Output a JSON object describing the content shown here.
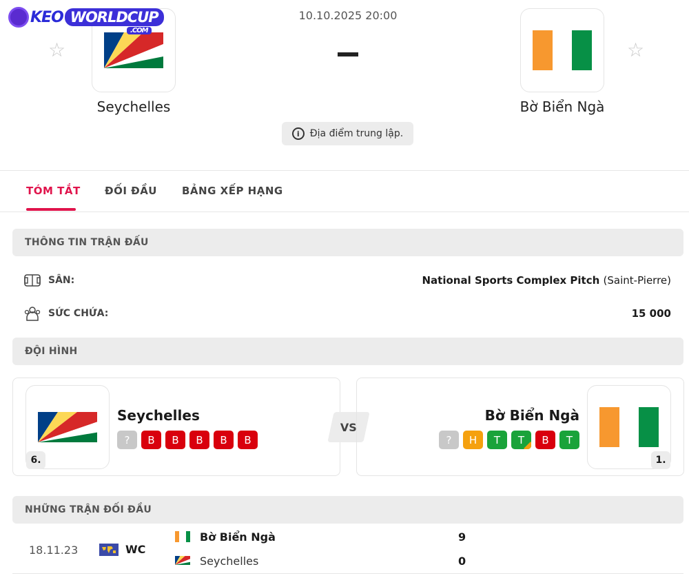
{
  "logo": {
    "text1": "KEO",
    "text2": "WORLDCUP",
    "text3": ".COM"
  },
  "match": {
    "datetime": "10.10.2025 20:00",
    "score": "-",
    "neutral": "Địa điểm trung lập.",
    "home": "Seychelles",
    "away": "Bờ Biển Ngà"
  },
  "tabs": [
    {
      "label": "TÓM TẮT",
      "active": true
    },
    {
      "label": "ĐỐI ĐẦU"
    },
    {
      "label": "BẢNG XẾP HẠNG"
    }
  ],
  "info": {
    "title": "THÔNG TIN TRẬN ĐẤU",
    "venue_label": "SÂN:",
    "venue": "National Sports Complex Pitch",
    "venue_city": "(Saint-Pierre)",
    "capacity_label": "SỨC CHỨA:",
    "capacity": "15 000"
  },
  "lineup": {
    "title": "ĐỘI HÌNH",
    "vs": "VS",
    "home": {
      "name": "Seychelles",
      "rank": "6.",
      "form": [
        "?",
        "B",
        "B",
        "B",
        "B",
        "B"
      ]
    },
    "away": {
      "name": "Bờ Biển Ngà",
      "rank": "1.",
      "form": [
        "?",
        "H",
        "T",
        "T",
        "B",
        "T"
      ]
    }
  },
  "h2h": {
    "title": "NHỮNG TRẬN ĐỐI ĐẦU",
    "matches": [
      {
        "date": "18.11.23",
        "competition": "WC",
        "team1": "Bờ Biển Ngà",
        "score1": "9",
        "team2": "Seychelles",
        "score2": "0",
        "winner": "team1"
      }
    ]
  },
  "colors": {
    "accent": "#e0144c",
    "win": "#1aa33a",
    "draw": "#f5a10f",
    "loss": "#d9000d",
    "unknown": "#c8c8c8"
  }
}
